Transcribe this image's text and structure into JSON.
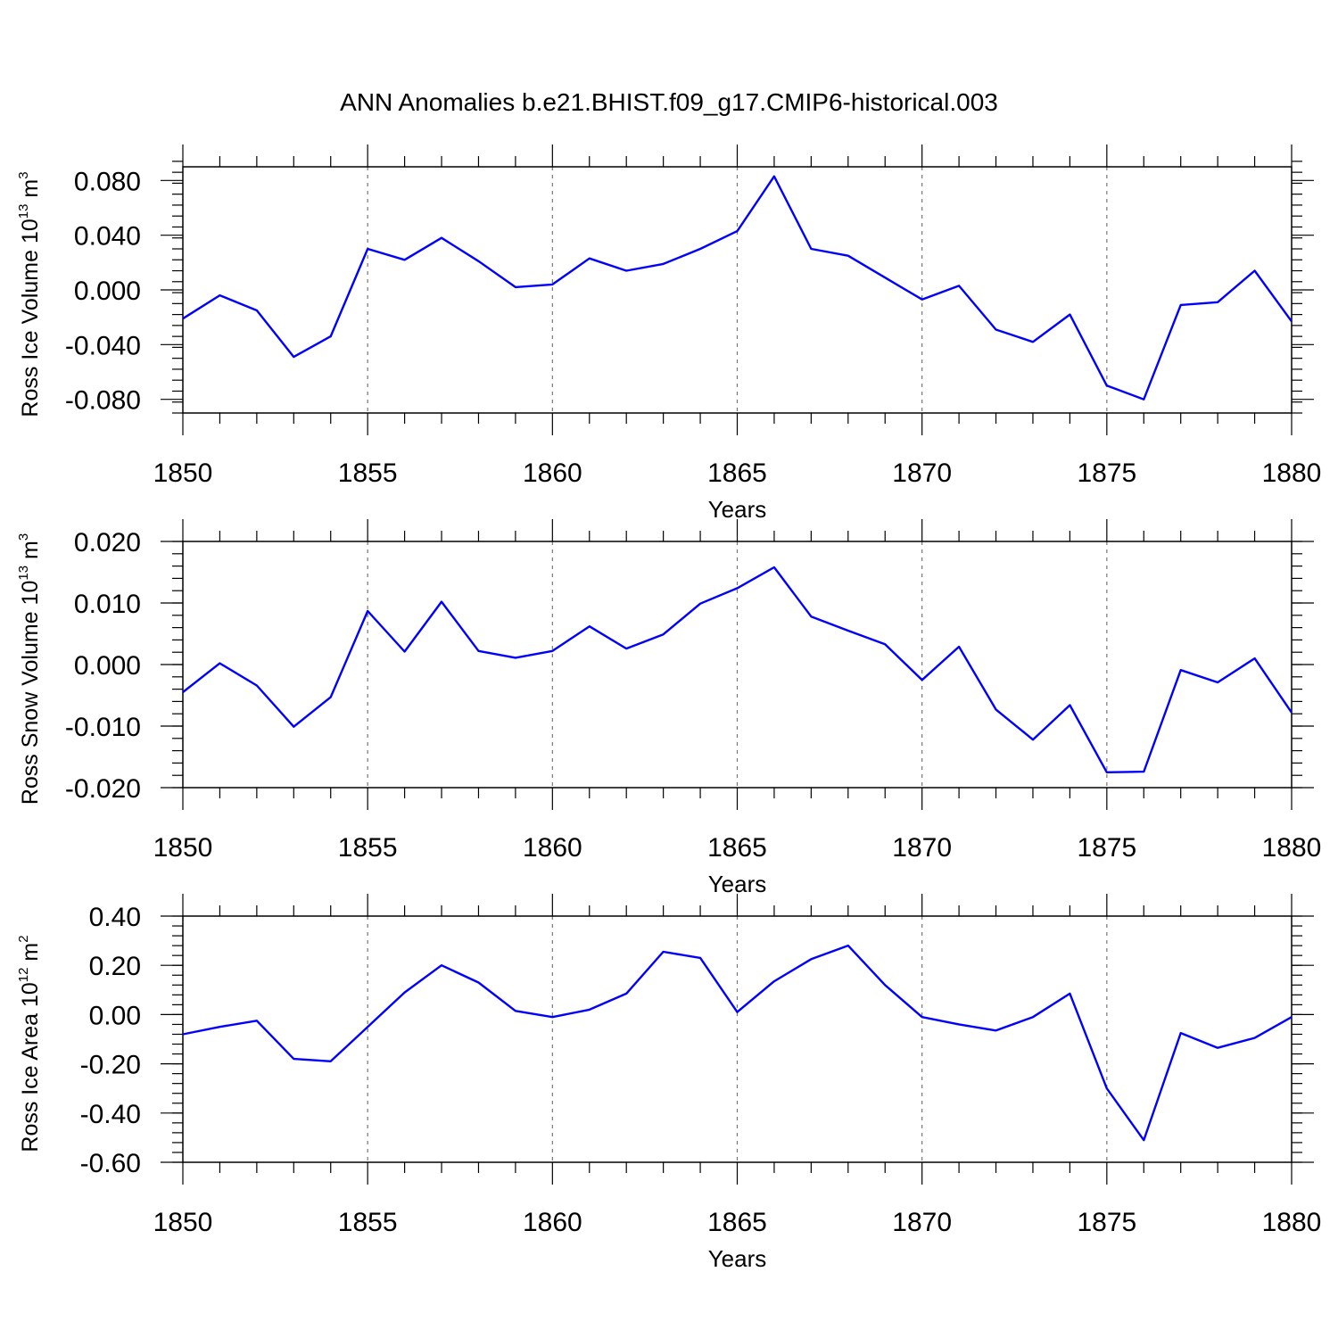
{
  "title": "ANN Anomalies b.e21.BHIST.f09_g17.CMIP6-historical.003",
  "line_color": "#0000ff",
  "chart_data": [
    {
      "type": "line",
      "ylabel": "Ross Ice Volume 10",
      "ylabel_exp": "13",
      "ylabel_unit": " m",
      "ylabel_unit_exp": "3",
      "xlabel": "Years",
      "xlim": [
        1850,
        1880
      ],
      "ylim": [
        -0.09,
        0.09
      ],
      "x_ticks": [
        1850,
        1855,
        1860,
        1865,
        1870,
        1875,
        1880
      ],
      "x_tick_labels": [
        "1850",
        "1855",
        "1860",
        "1865",
        "1870",
        "1875",
        "1880"
      ],
      "y_ticks": [
        -0.08,
        -0.04,
        0.0,
        0.04,
        0.08
      ],
      "y_tick_labels": [
        "-0.080",
        "-0.040",
        "0.000",
        "0.040",
        "0.080"
      ],
      "y_minor_step": 0.008,
      "grid_x": [
        1855,
        1860,
        1865,
        1870,
        1875
      ],
      "series": [
        {
          "x": [
            1850,
            1851,
            1852,
            1853,
            1854,
            1855,
            1856,
            1857,
            1858,
            1859,
            1860,
            1861,
            1862,
            1863,
            1864,
            1865,
            1866,
            1867,
            1868,
            1869,
            1870,
            1871,
            1872,
            1873,
            1874,
            1875,
            1876,
            1877,
            1878,
            1879,
            1880
          ],
          "values": [
            -0.021,
            -0.004,
            -0.015,
            -0.049,
            -0.034,
            0.03,
            0.022,
            0.038,
            0.021,
            0.002,
            0.004,
            0.023,
            0.014,
            0.019,
            0.03,
            0.043,
            0.083,
            0.03,
            0.025,
            0.009,
            -0.007,
            0.003,
            -0.029,
            -0.038,
            -0.018,
            -0.07,
            -0.08,
            -0.011,
            -0.009,
            0.014,
            -0.023
          ]
        }
      ]
    },
    {
      "type": "line",
      "ylabel": "Ross Snow Volume 10",
      "ylabel_exp": "13",
      "ylabel_unit": " m",
      "ylabel_unit_exp": "3",
      "xlabel": "Years",
      "xlim": [
        1850,
        1880
      ],
      "ylim": [
        -0.02,
        0.02
      ],
      "x_ticks": [
        1850,
        1855,
        1860,
        1865,
        1870,
        1875,
        1880
      ],
      "x_tick_labels": [
        "1850",
        "1855",
        "1860",
        "1865",
        "1870",
        "1875",
        "1880"
      ],
      "y_ticks": [
        -0.02,
        -0.01,
        0.0,
        0.01,
        0.02
      ],
      "y_tick_labels": [
        "-0.020",
        "-0.010",
        "0.000",
        "0.010",
        "0.020"
      ],
      "y_minor_step": 0.002,
      "grid_x": [
        1855,
        1860,
        1865,
        1870,
        1875
      ],
      "series": [
        {
          "x": [
            1850,
            1851,
            1852,
            1853,
            1854,
            1855,
            1856,
            1857,
            1858,
            1859,
            1860,
            1861,
            1862,
            1863,
            1864,
            1865,
            1866,
            1867,
            1868,
            1869,
            1870,
            1871,
            1872,
            1873,
            1874,
            1875,
            1876,
            1877,
            1878,
            1879,
            1880
          ],
          "values": [
            -0.0045,
            0.0002,
            -0.0034,
            -0.0101,
            -0.0053,
            0.0087,
            0.0021,
            0.0102,
            0.0022,
            0.0011,
            0.0022,
            0.0062,
            0.0026,
            0.0049,
            0.0099,
            0.0124,
            0.0158,
            0.0078,
            0.0055,
            0.0033,
            -0.0025,
            0.0029,
            -0.0073,
            -0.0122,
            -0.0066,
            -0.0175,
            -0.0174,
            -0.0009,
            -0.0029,
            0.001,
            -0.0078
          ]
        }
      ]
    },
    {
      "type": "line",
      "ylabel": "Ross Ice Area 10",
      "ylabel_exp": "12",
      "ylabel_unit": " m",
      "ylabel_unit_exp": "2",
      "xlabel": "Years",
      "xlim": [
        1850,
        1880
      ],
      "ylim": [
        -0.6,
        0.4
      ],
      "x_ticks": [
        1850,
        1855,
        1860,
        1865,
        1870,
        1875,
        1880
      ],
      "x_tick_labels": [
        "1850",
        "1855",
        "1860",
        "1865",
        "1870",
        "1875",
        "1880"
      ],
      "y_ticks": [
        -0.6,
        -0.4,
        -0.2,
        0.0,
        0.2,
        0.4
      ],
      "y_tick_labels": [
        "-0.60",
        "-0.40",
        "-0.20",
        "0.00",
        "0.20",
        "0.40"
      ],
      "y_minor_step": 0.04,
      "grid_x": [
        1855,
        1860,
        1865,
        1870,
        1875
      ],
      "series": [
        {
          "x": [
            1850,
            1851,
            1852,
            1853,
            1854,
            1855,
            1856,
            1857,
            1858,
            1859,
            1860,
            1861,
            1862,
            1863,
            1864,
            1865,
            1866,
            1867,
            1868,
            1869,
            1870,
            1871,
            1872,
            1873,
            1874,
            1875,
            1876,
            1877,
            1878,
            1879,
            1880
          ],
          "values": [
            -0.08,
            -0.05,
            -0.025,
            -0.18,
            -0.19,
            -0.05,
            0.09,
            0.2,
            0.13,
            0.015,
            -0.01,
            0.02,
            0.085,
            0.255,
            0.23,
            0.01,
            0.135,
            0.225,
            0.28,
            0.12,
            -0.01,
            -0.04,
            -0.065,
            -0.01,
            0.085,
            -0.3,
            -0.51,
            -0.075,
            -0.135,
            -0.095,
            -0.01
          ]
        }
      ]
    }
  ]
}
